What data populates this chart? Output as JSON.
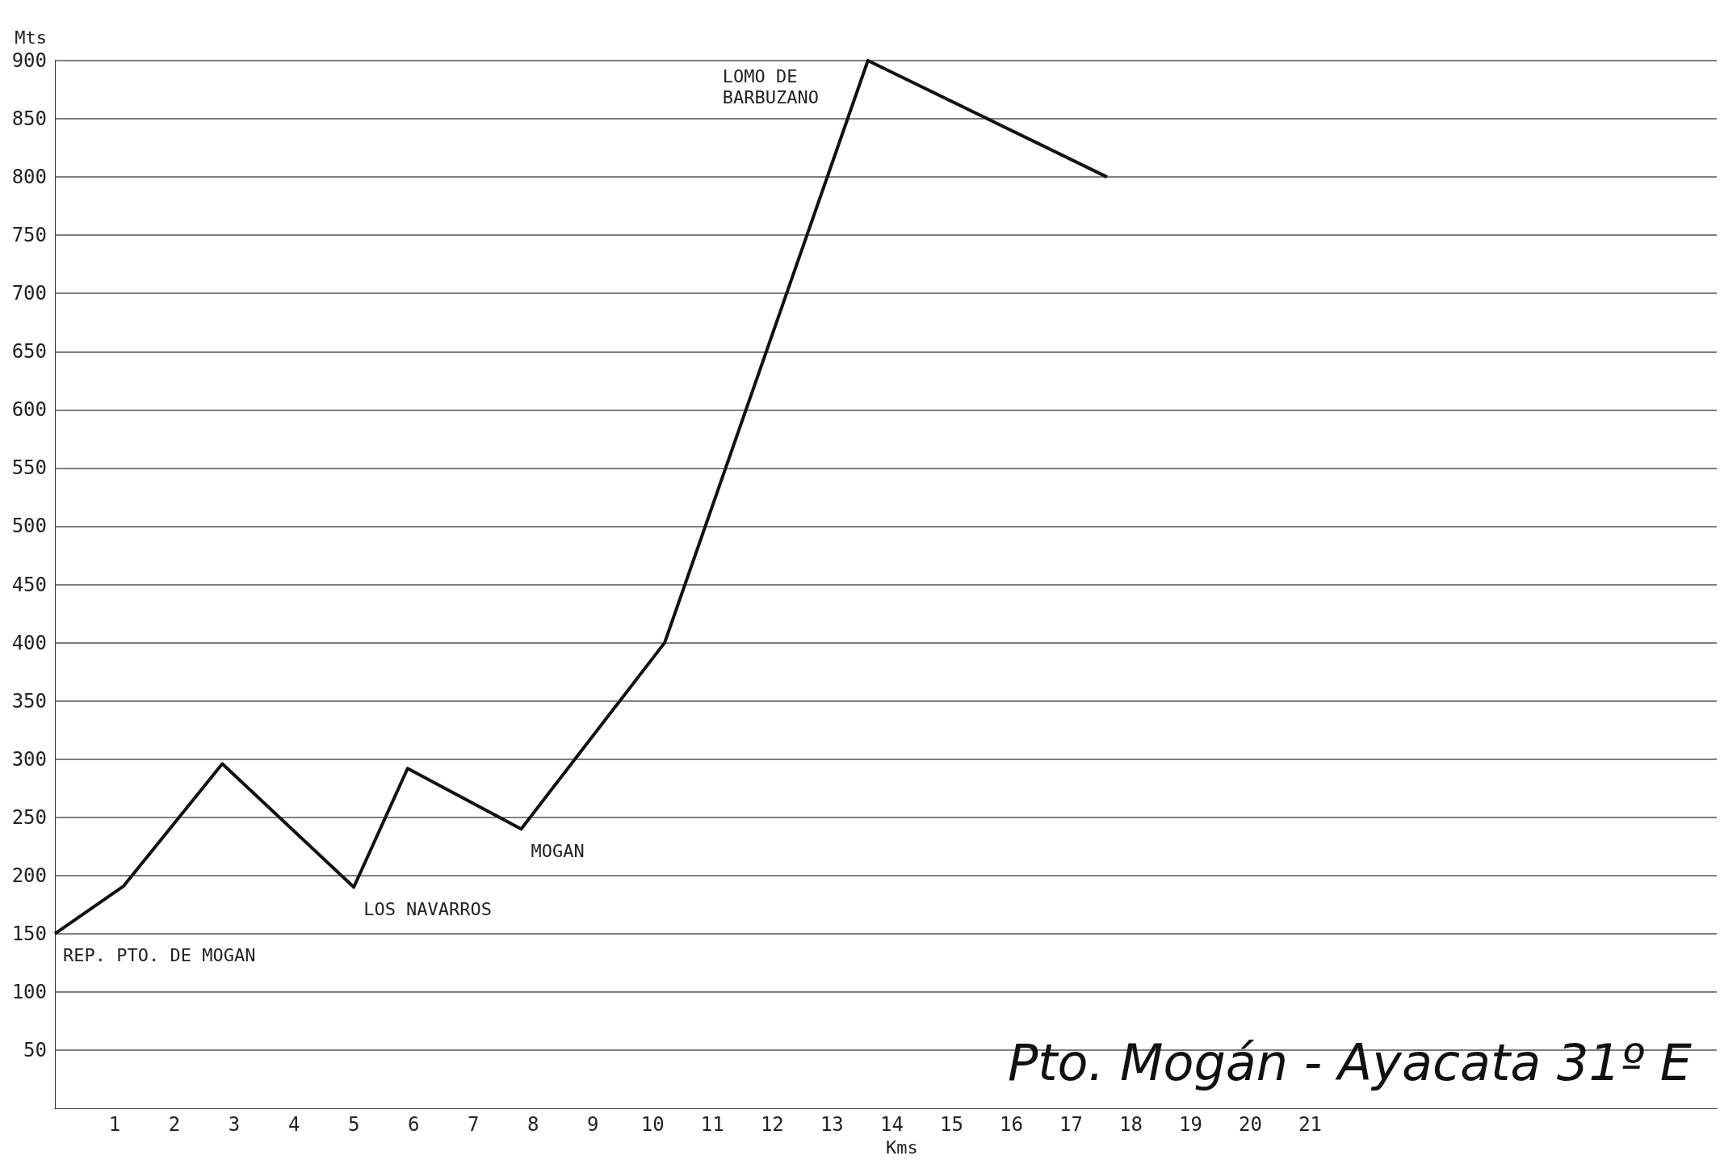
{
  "chart_data": {
    "type": "line",
    "title": "Pto. Mogán - Ayacata 31º E",
    "xlabel": "Kms",
    "ylabel": "Mts",
    "x": [
      0,
      1.15,
      2.8,
      5.0,
      5.9,
      7.8,
      10.2,
      13.6,
      17.6
    ],
    "series": [
      {
        "color": "#111111",
        "values": [
          150,
          191,
          296,
          190,
          292,
          240,
          400,
          900,
          800
        ]
      }
    ],
    "xlim": [
      0,
      27.8
    ],
    "xticks": [
      1,
      2,
      3,
      4,
      5,
      6,
      7,
      8,
      9,
      10,
      11,
      12,
      13,
      14,
      15,
      16,
      17,
      18,
      19,
      20,
      21
    ],
    "ylim": [
      0,
      900
    ],
    "yticks": [
      50,
      100,
      150,
      200,
      250,
      300,
      350,
      400,
      450,
      500,
      550,
      600,
      650,
      700,
      750,
      800,
      850,
      900
    ],
    "grid": "y",
    "marker": "none",
    "line_style": "solid",
    "annotations": [
      {
        "text": "REP. PTO. DE MOGAN",
        "x": 0,
        "y": 150
      },
      {
        "text": "LOS NAVARROS",
        "x": 5.0,
        "y": 190
      },
      {
        "text": "MOGAN",
        "x": 7.8,
        "y": 240
      },
      {
        "text": "LOMO DE BARBUZANO",
        "x": 13.6,
        "y": 900
      }
    ]
  }
}
